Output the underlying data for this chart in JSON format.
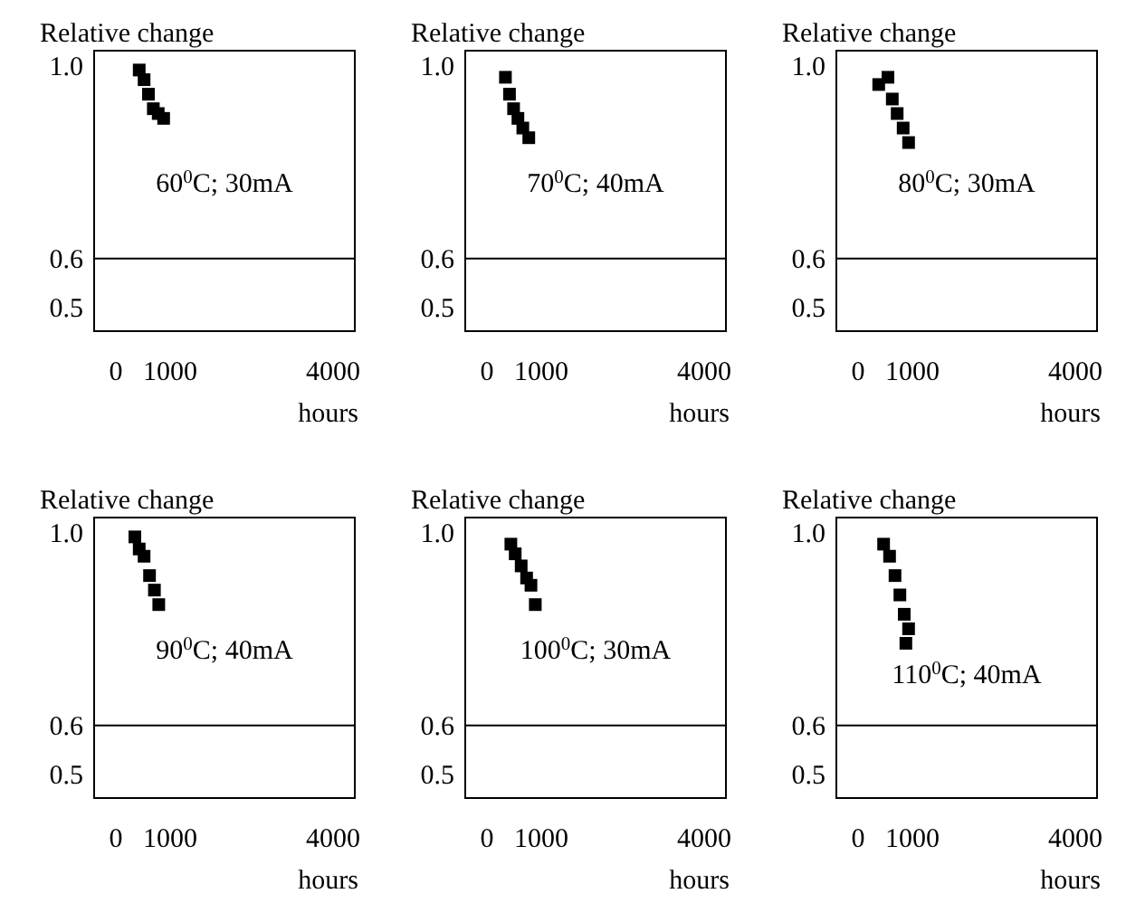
{
  "chart_data": [
    {
      "type": "scatter",
      "title": "Relative change",
      "xlabel": "hours",
      "annotations": [
        "60$^{0}$C; 30mA"
      ],
      "marker": "square",
      "xlim": [
        -400,
        4400
      ],
      "xticks": [
        0,
        1000,
        4000
      ],
      "ylim": [
        0.45,
        1.03
      ],
      "yticks": [
        {
          "value": 0.5,
          "label": "0.5"
        },
        {
          "value": 0.6,
          "label": "0.6"
        },
        {
          "value": 1.0,
          "label": "1.0"
        }
      ],
      "ref_lines": [
        {
          "axis": "y",
          "value": 0.6,
          "color": "#000000"
        }
      ],
      "series": [
        {
          "color": "#000000",
          "x": [
            430,
            520,
            600,
            690,
            780,
            880
          ],
          "values": [
            0.99,
            0.97,
            0.94,
            0.91,
            0.9,
            0.89
          ]
        }
      ]
    },
    {
      "type": "scatter",
      "title": "Relative change",
      "xlabel": "hours",
      "annotations": [
        "70$^{0}$C; 40mA"
      ],
      "marker": "square",
      "xlim": [
        -400,
        4400
      ],
      "xticks": [
        0,
        1000,
        4000
      ],
      "ylim": [
        0.45,
        1.03
      ],
      "yticks": [
        {
          "value": 0.5,
          "label": "0.5"
        },
        {
          "value": 0.6,
          "label": "0.6"
        },
        {
          "value": 1.0,
          "label": "1.0"
        }
      ],
      "ref_lines": [
        {
          "axis": "y",
          "value": 0.6,
          "color": "#000000"
        }
      ],
      "series": [
        {
          "color": "#000000",
          "x": [
            340,
            415,
            490,
            570,
            660,
            770
          ],
          "values": [
            0.975,
            0.94,
            0.91,
            0.89,
            0.87,
            0.85
          ]
        }
      ]
    },
    {
      "type": "scatter",
      "title": "Relative change",
      "xlabel": "hours",
      "annotations": [
        "80$^{0}$C; 30mA"
      ],
      "marker": "square",
      "xlim": [
        -400,
        4400
      ],
      "xticks": [
        0,
        1000,
        4000
      ],
      "ylim": [
        0.45,
        1.03
      ],
      "yticks": [
        {
          "value": 0.5,
          "label": "0.5"
        },
        {
          "value": 0.6,
          "label": "0.6"
        },
        {
          "value": 1.0,
          "label": "1.0"
        }
      ],
      "ref_lines": [
        {
          "axis": "y",
          "value": 0.6,
          "color": "#000000"
        }
      ],
      "series": [
        {
          "color": "#000000",
          "x": [
            380,
            550,
            630,
            720,
            830,
            930
          ],
          "values": [
            0.96,
            0.975,
            0.93,
            0.9,
            0.87,
            0.84
          ]
        }
      ]
    },
    {
      "type": "scatter",
      "title": "Relative change",
      "xlabel": "hours",
      "annotations": [
        "90$^{0}$C; 40mA"
      ],
      "marker": "square",
      "xlim": [
        -400,
        4400
      ],
      "xticks": [
        0,
        1000,
        4000
      ],
      "ylim": [
        0.45,
        1.03
      ],
      "yticks": [
        {
          "value": 0.5,
          "label": "0.5"
        },
        {
          "value": 0.6,
          "label": "0.6"
        },
        {
          "value": 1.0,
          "label": "1.0"
        }
      ],
      "ref_lines": [
        {
          "axis": "y",
          "value": 0.6,
          "color": "#000000"
        }
      ],
      "series": [
        {
          "color": "#000000",
          "x": [
            350,
            430,
            520,
            620,
            710,
            790
          ],
          "values": [
            0.99,
            0.965,
            0.95,
            0.91,
            0.88,
            0.85
          ]
        }
      ]
    },
    {
      "type": "scatter",
      "title": "Relative change",
      "xlabel": "hours",
      "annotations": [
        "100$^{0}$C; 30mA"
      ],
      "marker": "square",
      "xlim": [
        -400,
        4400
      ],
      "xticks": [
        0,
        1000,
        4000
      ],
      "ylim": [
        0.45,
        1.03
      ],
      "yticks": [
        {
          "value": 0.5,
          "label": "0.5"
        },
        {
          "value": 0.6,
          "label": "0.6"
        },
        {
          "value": 1.0,
          "label": "1.0"
        }
      ],
      "ref_lines": [
        {
          "axis": "y",
          "value": 0.6,
          "color": "#000000"
        }
      ],
      "series": [
        {
          "color": "#000000",
          "x": [
            440,
            520,
            630,
            730,
            810,
            890
          ],
          "values": [
            0.975,
            0.955,
            0.93,
            0.905,
            0.89,
            0.85
          ]
        }
      ]
    },
    {
      "type": "scatter",
      "title": "Relative change",
      "xlabel": "hours",
      "annotations": [
        "110$^{0}$C; 40mA"
      ],
      "marker": "square",
      "xlim": [
        -400,
        4400
      ],
      "xticks": [
        0,
        1000,
        4000
      ],
      "ylim": [
        0.45,
        1.03
      ],
      "yticks": [
        {
          "value": 0.5,
          "label": "0.5"
        },
        {
          "value": 0.6,
          "label": "0.6"
        },
        {
          "value": 1.0,
          "label": "1.0"
        }
      ],
      "ref_lines": [
        {
          "axis": "y",
          "value": 0.6,
          "color": "#000000"
        }
      ],
      "series": [
        {
          "color": "#000000",
          "x": [
            470,
            580,
            680,
            770,
            850,
            930,
            880
          ],
          "values": [
            0.975,
            0.95,
            0.91,
            0.87,
            0.83,
            0.8,
            0.77
          ]
        }
      ]
    }
  ]
}
